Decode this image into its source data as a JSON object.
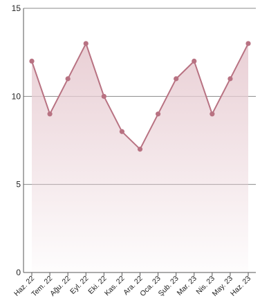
{
  "chart_data": {
    "type": "area",
    "title": "",
    "xlabel": "",
    "ylabel": "",
    "categories": [
      "Haz. 22",
      "Tem. 22",
      "Ağu. 22",
      "Eyl. 22",
      "Eki. 22",
      "Kas. 22",
      "Ara. 22",
      "Oca. 23",
      "Şub. 23",
      "Mar. 23",
      "Nis. 23",
      "May. 23",
      "Haz. 23"
    ],
    "values": [
      12,
      9,
      11,
      13,
      10,
      8,
      7,
      9,
      11,
      12,
      9,
      11,
      13
    ],
    "ylim": [
      0,
      15
    ],
    "yticks": [
      "0",
      "5",
      "10",
      "15"
    ],
    "grid": true,
    "legend": "none",
    "colors": {
      "line": "#b87282",
      "fill": "#e8cdd3",
      "grid": "#8a8a8a",
      "axis": "#555555"
    }
  }
}
